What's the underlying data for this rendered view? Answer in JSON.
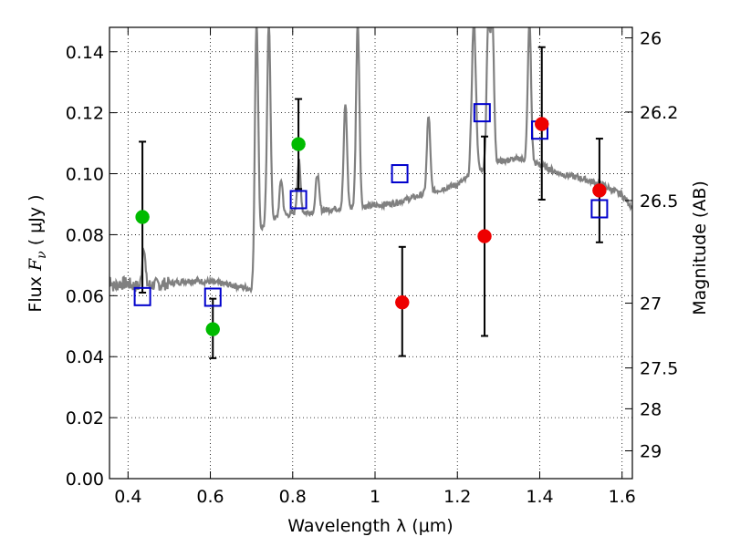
{
  "chart_data": {
    "type": "scatter",
    "xlabel": "Wavelength  λ (μm)",
    "ylabel_prefix": "Flux  ",
    "ylabel_var": "F",
    "ylabel_sub": "ν",
    "ylabel_suffix": "  ( μJy )",
    "ylabel_right": "Magnitude (AB)",
    "xlim": [
      0.355,
      1.625
    ],
    "ylim": [
      0.0,
      0.148
    ],
    "log_scale": false,
    "grid": "dotted",
    "legend": "none",
    "x_ticks": [
      {
        "value": 0.4,
        "label": "0.4"
      },
      {
        "value": 0.6,
        "label": "0.6"
      },
      {
        "value": 0.8,
        "label": "0.8"
      },
      {
        "value": 1.0,
        "label": "1"
      },
      {
        "value": 1.2,
        "label": "1.2"
      },
      {
        "value": 1.4,
        "label": "1.4"
      },
      {
        "value": 1.6,
        "label": "1.6"
      }
    ],
    "y_ticks": [
      {
        "value": 0.0,
        "label": "0.00"
      },
      {
        "value": 0.02,
        "label": "0.02"
      },
      {
        "value": 0.04,
        "label": "0.04"
      },
      {
        "value": 0.06,
        "label": "0.06"
      },
      {
        "value": 0.08,
        "label": "0.08"
      },
      {
        "value": 0.1,
        "label": "0.10"
      },
      {
        "value": 0.12,
        "label": "0.12"
      },
      {
        "value": 0.14,
        "label": "0.14"
      }
    ],
    "right_ticks": [
      {
        "value": 26,
        "label": "26"
      },
      {
        "value": 26.2,
        "label": "26.2"
      },
      {
        "value": 26.5,
        "label": "26.5"
      },
      {
        "value": 27,
        "label": "27"
      },
      {
        "value": 27.5,
        "label": "27.5"
      },
      {
        "value": 28,
        "label": "28"
      },
      {
        "value": 29,
        "label": "29"
      }
    ],
    "colors": {
      "spectrum": "#808080",
      "model_square": "#0000cc",
      "green_point": "#00bb00",
      "red_point": "#ee0000",
      "errorbar": "#000000"
    },
    "spectrum": {
      "continuum": [
        [
          0.355,
          0.066
        ],
        [
          0.365,
          0.063
        ],
        [
          0.38,
          0.064
        ],
        [
          0.4,
          0.064
        ],
        [
          0.42,
          0.063
        ],
        [
          0.45,
          0.0635
        ],
        [
          0.5,
          0.064
        ],
        [
          0.55,
          0.065
        ],
        [
          0.6,
          0.0645
        ],
        [
          0.65,
          0.0635
        ],
        [
          0.69,
          0.0625
        ],
        [
          0.705,
          0.062
        ],
        [
          0.715,
          0.077
        ],
        [
          0.725,
          0.082
        ],
        [
          0.75,
          0.085
        ],
        [
          0.8,
          0.087
        ],
        [
          0.85,
          0.0875
        ],
        [
          0.9,
          0.0885
        ],
        [
          0.95,
          0.089
        ],
        [
          1.0,
          0.0895
        ],
        [
          1.05,
          0.0905
        ],
        [
          1.1,
          0.0925
        ],
        [
          1.15,
          0.0945
        ],
        [
          1.2,
          0.0965
        ],
        [
          1.25,
          0.1005
        ],
        [
          1.3,
          0.104
        ],
        [
          1.35,
          0.105
        ],
        [
          1.4,
          0.103
        ],
        [
          1.45,
          0.1
        ],
        [
          1.5,
          0.0985
        ],
        [
          1.55,
          0.0965
        ],
        [
          1.6,
          0.093
        ],
        [
          1.625,
          0.089
        ]
      ],
      "lines": [
        {
          "x": 0.438,
          "peak": 0.077,
          "width": 0.0035
        },
        {
          "x": 0.712,
          "peak": 0.15,
          "width": 0.004
        },
        {
          "x": 0.742,
          "peak": 0.15,
          "width": 0.004
        },
        {
          "x": 0.772,
          "peak": 0.098,
          "width": 0.004
        },
        {
          "x": 0.815,
          "peak": 0.104,
          "width": 0.004
        },
        {
          "x": 0.86,
          "peak": 0.1,
          "width": 0.004
        },
        {
          "x": 0.928,
          "peak": 0.123,
          "width": 0.004
        },
        {
          "x": 0.958,
          "peak": 0.15,
          "width": 0.004
        },
        {
          "x": 1.13,
          "peak": 0.119,
          "width": 0.004
        },
        {
          "x": 1.24,
          "peak": 0.15,
          "width": 0.005
        },
        {
          "x": 1.275,
          "peak": 0.15,
          "width": 0.004
        },
        {
          "x": 1.285,
          "peak": 0.15,
          "width": 0.004
        },
        {
          "x": 1.375,
          "peak": 0.15,
          "width": 0.004
        }
      ]
    },
    "model_squares": [
      {
        "x": 0.435,
        "y": 0.0597
      },
      {
        "x": 0.606,
        "y": 0.0595
      },
      {
        "x": 0.814,
        "y": 0.0915
      },
      {
        "x": 1.06,
        "y": 0.1
      },
      {
        "x": 1.26,
        "y": 0.12
      },
      {
        "x": 1.4,
        "y": 0.1143
      },
      {
        "x": 1.545,
        "y": 0.0885
      }
    ],
    "observations": [
      {
        "x": 0.435,
        "y": 0.0858,
        "ylow": 0.061,
        "yhigh": 0.1105,
        "color": "green"
      },
      {
        "x": 0.606,
        "y": 0.049,
        "ylow": 0.0395,
        "yhigh": 0.059,
        "color": "green"
      },
      {
        "x": 0.814,
        "y": 0.1097,
        "ylow": 0.095,
        "yhigh": 0.1245,
        "color": "green"
      },
      {
        "x": 1.066,
        "y": 0.0578,
        "ylow": 0.0402,
        "yhigh": 0.076,
        "color": "red"
      },
      {
        "x": 1.266,
        "y": 0.0795,
        "ylow": 0.0468,
        "yhigh": 0.1122,
        "color": "red"
      },
      {
        "x": 1.405,
        "y": 0.1163,
        "ylow": 0.0915,
        "yhigh": 0.1415,
        "color": "red"
      },
      {
        "x": 1.545,
        "y": 0.0945,
        "ylow": 0.0775,
        "yhigh": 0.1115,
        "color": "red"
      }
    ]
  }
}
